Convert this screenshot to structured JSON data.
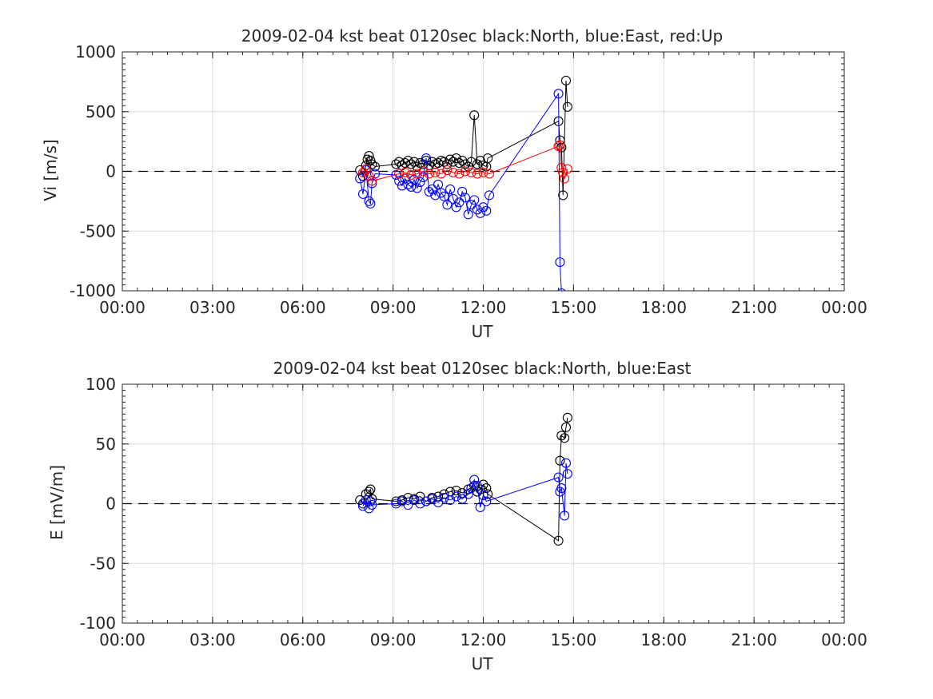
{
  "chart_data": [
    {
      "type": "scatter",
      "title": "2009-02-04 kst beat 0120sec black:North, blue:East, red:Up",
      "xlabel": "UT",
      "ylabel": "Vi [m/s]",
      "xlim": [
        0,
        24
      ],
      "ylim": [
        -1000,
        1000
      ],
      "x_tick_values": [
        0,
        3,
        6,
        9,
        12,
        15,
        18,
        21,
        24
      ],
      "x_tick_labels": [
        "00:00",
        "03:00",
        "06:00",
        "09:00",
        "12:00",
        "15:00",
        "18:00",
        "21:00",
        "00:00"
      ],
      "y_tick_values": [
        1000,
        500,
        0,
        -500,
        -1000
      ],
      "y_tick_labels": [
        "1000",
        "500",
        "0",
        "-500",
        "-1000"
      ],
      "grid": true,
      "zero_line": "dashed",
      "marker": "open-circle",
      "series": [
        {
          "name": "North",
          "color": "#000000",
          "x": [
            7.9,
            8.0,
            8.1,
            8.15,
            8.2,
            8.25,
            8.3,
            8.4,
            9.1,
            9.2,
            9.3,
            9.4,
            9.5,
            9.6,
            9.7,
            9.8,
            9.9,
            10.0,
            10.1,
            10.2,
            10.3,
            10.4,
            10.5,
            10.6,
            10.7,
            10.8,
            10.9,
            11.0,
            11.1,
            11.2,
            11.3,
            11.4,
            11.5,
            11.6,
            11.7,
            11.8,
            11.9,
            12.0,
            12.1,
            12.15,
            14.5,
            14.55,
            14.6,
            14.65,
            14.75,
            14.8
          ],
          "y": [
            10,
            -40,
            50,
            100,
            130,
            90,
            60,
            40,
            60,
            80,
            50,
            70,
            90,
            60,
            80,
            40,
            70,
            60,
            90,
            50,
            80,
            60,
            70,
            90,
            80,
            60,
            100,
            80,
            110,
            70,
            90,
            60,
            40,
            80,
            470,
            60,
            90,
            50,
            40,
            110,
            420,
            260,
            200,
            -200,
            760,
            540
          ]
        },
        {
          "name": "East",
          "color": "#0000ff",
          "x": [
            7.9,
            8.0,
            8.1,
            8.2,
            8.25,
            8.3,
            8.4,
            9.1,
            9.2,
            9.3,
            9.4,
            9.5,
            9.6,
            9.7,
            9.8,
            9.9,
            10.0,
            10.1,
            10.2,
            10.3,
            10.4,
            10.5,
            10.6,
            10.7,
            10.8,
            10.9,
            11.0,
            11.1,
            11.2,
            11.3,
            11.4,
            11.5,
            11.6,
            11.7,
            11.8,
            11.9,
            12.0,
            12.1,
            12.2,
            14.5,
            14.55,
            14.6
          ],
          "y": [
            -60,
            -190,
            10,
            -250,
            -270,
            -100,
            -20,
            -30,
            -80,
            -120,
            -60,
            -110,
            -130,
            -70,
            -140,
            -90,
            -50,
            110,
            -170,
            -150,
            -200,
            -110,
            -180,
            -210,
            -280,
            -150,
            -230,
            -300,
            -260,
            -170,
            -220,
            -360,
            -280,
            -240,
            -320,
            -350,
            -300,
            -330,
            -200,
            650,
            -760,
            -1020
          ]
        },
        {
          "name": "Up",
          "color": "#ff0000",
          "x": [
            8.0,
            8.1,
            8.2,
            8.3,
            9.2,
            9.4,
            9.6,
            9.8,
            10.0,
            10.2,
            10.4,
            10.6,
            10.8,
            11.0,
            11.2,
            11.4,
            11.6,
            11.8,
            12.0,
            12.2,
            14.5,
            14.55,
            14.6,
            14.65,
            14.7,
            14.8
          ],
          "y": [
            -10,
            20,
            -40,
            -80,
            -20,
            -10,
            -30,
            -20,
            0,
            -20,
            -10,
            -20,
            10,
            -10,
            -20,
            0,
            -10,
            -20,
            -10,
            -20,
            210,
            220,
            30,
            -10,
            -60,
            20
          ]
        }
      ]
    },
    {
      "type": "scatter",
      "title": "2009-02-04 kst beat 0120sec black:North, blue:East",
      "xlabel": "UT",
      "ylabel": "E [mV/m]",
      "xlim": [
        0,
        24
      ],
      "ylim": [
        -100,
        100
      ],
      "x_tick_values": [
        0,
        3,
        6,
        9,
        12,
        15,
        18,
        21,
        24
      ],
      "x_tick_labels": [
        "00:00",
        "03:00",
        "06:00",
        "09:00",
        "12:00",
        "15:00",
        "18:00",
        "21:00",
        "00:00"
      ],
      "y_tick_values": [
        100,
        50,
        0,
        -50,
        -100
      ],
      "y_tick_labels": [
        "100",
        "50",
        "0",
        "-50",
        "-100"
      ],
      "grid": true,
      "zero_line": "dashed",
      "marker": "open-circle",
      "series": [
        {
          "name": "North",
          "color": "#000000",
          "x": [
            7.9,
            8.0,
            8.1,
            8.2,
            8.25,
            8.3,
            9.1,
            9.3,
            9.5,
            9.7,
            9.9,
            10.1,
            10.3,
            10.5,
            10.7,
            10.9,
            11.1,
            11.3,
            11.5,
            11.7,
            11.8,
            11.9,
            12.0,
            12.1,
            12.15,
            14.5,
            14.55,
            14.6,
            14.7,
            14.75,
            14.8
          ],
          "y": [
            3,
            0,
            8,
            10,
            12,
            4,
            2,
            3,
            5,
            4,
            6,
            2,
            5,
            6,
            8,
            10,
            11,
            9,
            12,
            15,
            10,
            12,
            16,
            13,
            8,
            -31,
            36,
            57,
            55,
            64,
            72
          ]
        },
        {
          "name": "East",
          "color": "#0000ff",
          "x": [
            8.0,
            8.1,
            8.2,
            8.25,
            8.3,
            9.1,
            9.3,
            9.5,
            9.7,
            9.9,
            10.1,
            10.3,
            10.5,
            10.7,
            10.9,
            11.1,
            11.3,
            11.5,
            11.6,
            11.7,
            11.8,
            11.9,
            12.0,
            12.1,
            14.5,
            14.55,
            14.6,
            14.7,
            14.75,
            14.8
          ],
          "y": [
            -2,
            3,
            -4,
            2,
            -1,
            0,
            2,
            -1,
            3,
            0,
            2,
            4,
            1,
            5,
            3,
            6,
            4,
            8,
            13,
            20,
            15,
            -3,
            7,
            2,
            22,
            10,
            13,
            -10,
            34,
            25
          ]
        }
      ]
    }
  ]
}
